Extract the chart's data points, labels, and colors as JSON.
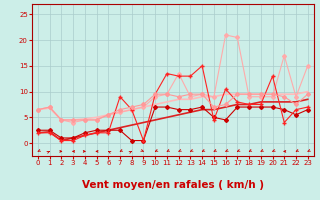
{
  "xlabel": "Vent moyen/en rafales ( km/h )",
  "bg_color": "#cceee8",
  "grid_color": "#aacccc",
  "x_ticks": [
    0,
    1,
    2,
    3,
    4,
    5,
    6,
    7,
    8,
    9,
    10,
    11,
    12,
    13,
    14,
    15,
    16,
    17,
    18,
    19,
    20,
    21,
    22,
    23
  ],
  "y_ticks": [
    0,
    5,
    10,
    15,
    20,
    25
  ],
  "ylim": [
    -2.5,
    27
  ],
  "xlim": [
    -0.5,
    23.5
  ],
  "lines": [
    {
      "x": [
        0,
        1,
        2,
        3,
        4,
        5,
        6,
        7,
        8,
        9,
        10,
        11,
        12,
        13,
        14,
        15,
        16,
        17,
        18,
        19,
        20,
        21,
        22,
        23
      ],
      "y": [
        6.5,
        7.0,
        4.5,
        4.0,
        4.5,
        4.5,
        5.5,
        6.0,
        6.5,
        7.0,
        9.0,
        9.5,
        13.5,
        9.0,
        9.5,
        9.0,
        21.0,
        20.5,
        9.0,
        9.0,
        9.0,
        17.0,
        9.0,
        15.0
      ],
      "color": "#ffaaaa",
      "lw": 0.8,
      "marker": "D",
      "ms": 2.0
    },
    {
      "x": [
        0,
        1,
        2,
        3,
        4,
        5,
        6,
        7,
        8,
        9,
        10,
        11,
        12,
        13,
        14,
        15,
        16,
        17,
        18,
        19,
        20,
        21,
        22,
        23
      ],
      "y": [
        2.5,
        2.5,
        1.0,
        1.0,
        2.0,
        2.5,
        2.5,
        2.5,
        0.5,
        0.5,
        7.0,
        7.0,
        6.5,
        6.5,
        7.0,
        5.0,
        4.5,
        7.0,
        7.0,
        7.0,
        7.0,
        6.5,
        5.5,
        6.5
      ],
      "color": "#cc0000",
      "lw": 0.8,
      "marker": "D",
      "ms": 2.0
    },
    {
      "x": [
        0,
        1,
        2,
        3,
        4,
        5,
        6,
        7,
        8,
        9,
        10,
        11,
        12,
        13,
        14,
        15,
        16,
        17,
        18,
        19,
        20,
        21,
        22,
        23
      ],
      "y": [
        2.0,
        2.0,
        0.5,
        0.5,
        1.5,
        2.0,
        2.0,
        9.0,
        6.5,
        0.5,
        9.5,
        13.5,
        13.0,
        13.0,
        15.0,
        4.5,
        10.5,
        8.0,
        7.5,
        7.5,
        13.0,
        4.0,
        6.5,
        7.0
      ],
      "color": "#ff2222",
      "lw": 0.8,
      "marker": "+",
      "ms": 3.5
    },
    {
      "x": [
        0,
        1,
        2,
        3,
        4,
        5,
        6,
        7,
        8,
        9,
        10,
        11,
        12,
        13,
        14,
        15,
        16,
        17,
        18,
        19,
        20,
        21,
        22,
        23
      ],
      "y": [
        6.5,
        7.0,
        4.5,
        4.5,
        4.5,
        4.5,
        5.5,
        6.5,
        7.0,
        7.5,
        9.5,
        9.5,
        9.0,
        9.5,
        9.5,
        7.0,
        7.5,
        9.5,
        9.5,
        9.5,
        9.5,
        9.0,
        7.5,
        9.5
      ],
      "color": "#ff9999",
      "lw": 0.8,
      "marker": "D",
      "ms": 2.0
    },
    {
      "x": [
        0,
        1,
        2,
        3,
        4,
        5,
        6,
        7,
        8,
        9,
        10,
        11,
        12,
        13,
        14,
        15,
        16,
        17,
        18,
        19,
        20,
        21,
        22,
        23
      ],
      "y": [
        2.0,
        2.2,
        0.5,
        1.0,
        1.5,
        2.0,
        2.5,
        3.0,
        3.5,
        4.0,
        4.5,
        5.0,
        5.5,
        6.0,
        6.5,
        6.5,
        7.0,
        7.5,
        7.5,
        8.0,
        8.0,
        8.0,
        8.0,
        8.5
      ],
      "color": "#dd2222",
      "lw": 1.2,
      "marker": null,
      "ms": 0
    },
    {
      "x": [
        0,
        1,
        2,
        3,
        4,
        5,
        6,
        7,
        8,
        9,
        10,
        11,
        12,
        13,
        14,
        15,
        16,
        17,
        18,
        19,
        20,
        21,
        22,
        23
      ],
      "y": [
        6.5,
        6.8,
        4.5,
        4.5,
        4.7,
        5.0,
        5.5,
        6.0,
        6.5,
        7.0,
        7.5,
        8.0,
        8.5,
        8.5,
        9.0,
        9.0,
        9.5,
        9.5,
        9.5,
        9.5,
        9.5,
        9.5,
        9.5,
        10.0
      ],
      "color": "#ffbbbb",
      "lw": 1.2,
      "marker": null,
      "ms": 0
    }
  ],
  "wind_dirs": [
    225,
    45,
    90,
    270,
    90,
    270,
    315,
    225,
    45,
    135,
    225,
    225,
    225,
    225,
    225,
    225,
    225,
    225,
    225,
    225,
    225,
    270,
    225,
    225
  ],
  "tick_label_color": "#cc0000",
  "axis_color": "#aa0000",
  "xlabel_color": "#cc0000",
  "xlabel_fontsize": 7.5
}
